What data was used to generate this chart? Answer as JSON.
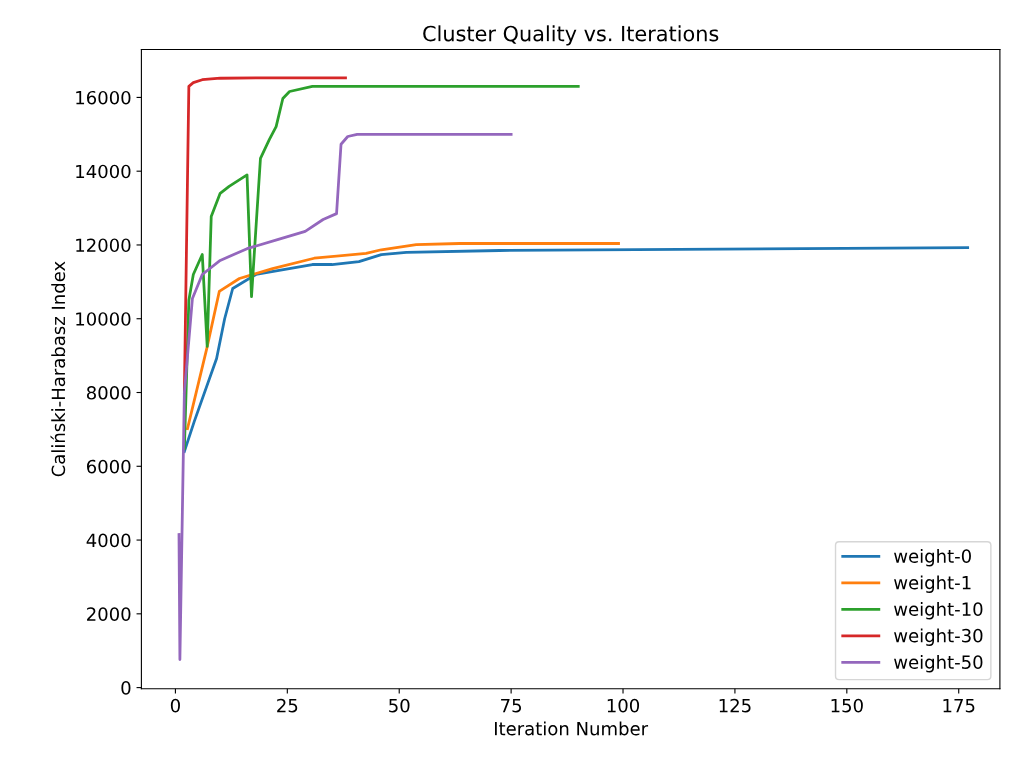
{
  "chart_data": {
    "type": "line",
    "title": "Cluster Quality vs. Iterations",
    "xlabel": "Iteration Number",
    "ylabel": "Caliński-Harabasz Index",
    "xlim": [
      -7.6,
      184.2
    ],
    "ylim": [
      -30,
      17300
    ],
    "xticks": [
      0,
      25,
      50,
      75,
      100,
      125,
      150,
      175
    ],
    "yticks": [
      0,
      2000,
      4000,
      6000,
      8000,
      10000,
      12000,
      14000,
      16000
    ],
    "legend": "bottom right",
    "grid": false,
    "line_style": "solid",
    "marker": "none",
    "series": [
      {
        "name": "weight-0",
        "color": "#1f77b4",
        "x": [
          2,
          4.2,
          9.2,
          11,
          12.8,
          18,
          30.6,
          35,
          41,
          46,
          51.6,
          72.4,
          177
        ],
        "values": [
          6400,
          7210,
          8920,
          10000,
          10820,
          11200,
          11470,
          11470,
          11550,
          11740,
          11800,
          11850,
          11930
        ]
      },
      {
        "name": "weight-1",
        "color": "#ff7f0e",
        "x": [
          2.7,
          7,
          9.8,
          14.3,
          21.7,
          31,
          42.6,
          46,
          53.8,
          63.5,
          99
        ],
        "values": [
          7020,
          9190,
          10740,
          11090,
          11360,
          11640,
          11770,
          11870,
          12010,
          12040,
          12040
        ]
      },
      {
        "name": "weight-10",
        "color": "#2ca02c",
        "x": [
          2,
          3,
          4,
          6,
          7.1,
          8,
          10,
          12,
          16,
          17,
          19,
          21,
          22.5,
          24,
          25.5,
          30.6,
          90
        ],
        "values": [
          6480,
          10500,
          11200,
          11740,
          9250,
          12770,
          13400,
          13590,
          13900,
          10600,
          14350,
          14860,
          15210,
          15970,
          16160,
          16300,
          16300
        ]
      },
      {
        "name": "weight-30",
        "color": "#d62728",
        "x": [
          2,
          3,
          4,
          6,
          10,
          20,
          38
        ],
        "values": [
          8000,
          16300,
          16400,
          16480,
          16520,
          16530,
          16530
        ]
      },
      {
        "name": "weight-50",
        "color": "#9467bd",
        "x": [
          0.8,
          1,
          2,
          3.8,
          6,
          10,
          16,
          23,
          29,
          33,
          36,
          37,
          38.5,
          40.6,
          75
        ],
        "values": [
          4150,
          760,
          8000,
          10550,
          11200,
          11580,
          11900,
          12150,
          12370,
          12690,
          12850,
          14730,
          14940,
          15000,
          15000
        ]
      }
    ]
  }
}
